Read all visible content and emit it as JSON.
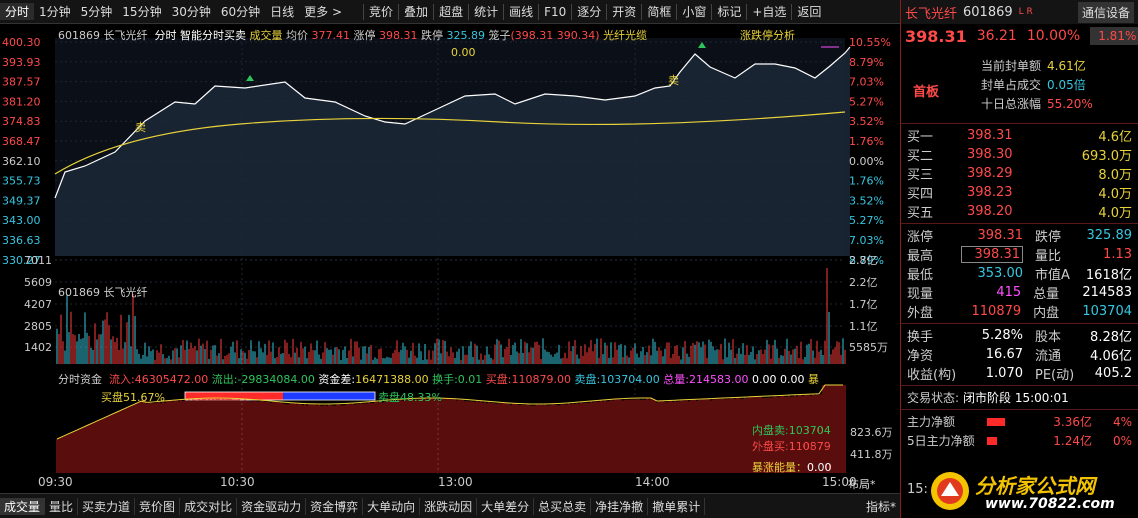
{
  "toolbar": {
    "period_tabs": [
      "分时",
      "1分钟",
      "5分钟",
      "15分钟",
      "30分钟",
      "60分钟",
      "日线",
      "更多 >"
    ],
    "tools": [
      "竞价",
      "叠加",
      "超盘",
      "统计",
      "画线",
      "F10",
      "逐分",
      "开资",
      "简框",
      "小窗",
      "标记",
      "+自选",
      "返回"
    ]
  },
  "chart_header": {
    "code": "601869",
    "name": "长飞光纤",
    "mode": "分时",
    "title": "智能分时买卖",
    "volume_label": "成交量",
    "avg_label": "均价",
    "avg_value": "377.41",
    "limit_up_label": "涨停",
    "limit_up_value": "398.31",
    "limit_down_label": "跌停",
    "limit_down_value": "325.89",
    "basket_label": "笼子",
    "basket_value": "(398.31  390.34)",
    "concept": "光纤光缆",
    "right_label": "涨跌停分析",
    "zero_label": "0.00"
  },
  "price_axis": {
    "left": [
      "400.30",
      "393.93",
      "387.57",
      "381.20",
      "374.83",
      "368.47",
      "362.10",
      "355.73",
      "349.37",
      "343.00",
      "336.63",
      "330.27"
    ],
    "right": [
      "10.55%",
      "8.79%",
      "7.03%",
      "5.27%",
      "3.52%",
      "1.76%",
      "0.00%",
      "1.76%",
      "3.52%",
      "5.27%",
      "7.03%",
      "8.79%"
    ]
  },
  "volume_axis": {
    "header": "601869  长飞光纤",
    "left": [
      "7011",
      "5609",
      "4207",
      "2805",
      "1402"
    ],
    "right": [
      "2.8亿",
      "2.2亿",
      "1.7亿",
      "1.1亿",
      "5585万"
    ]
  },
  "fund_bar": {
    "label": "分时资金",
    "inflow_label": "流入:",
    "inflow": "46305472.00",
    "outflow_label": "流出:",
    "outflow": "-29834084.00",
    "diff_label": "资金差:",
    "diff": "16471388.00",
    "turnover_label": "换手:",
    "turnover": "0.01",
    "buy_label": "买盘:",
    "buy": "110879.00",
    "sell_label": "卖盘:",
    "sell": "103704.00",
    "total_label": "总量:",
    "total": "214583.00",
    "extra1": "0.00",
    "extra2": "0.00",
    "storm": "暴"
  },
  "fund_chart": {
    "buy_ratio_text": "买盘51.67%",
    "sell_ratio_text": "卖盘48.33%",
    "buy_ratio": 51.67,
    "inner_label": "内盘卖:103704",
    "outer_label": "外盘买:110879",
    "storm_label": "暴涨能量：",
    "storm_value": "0.00",
    "right_axis": [
      "823.6万",
      "411.8万"
    ]
  },
  "signals": {
    "buy": "买",
    "sell": "卖"
  },
  "time_axis": [
    "09:30",
    "10:30",
    "13:00",
    "14:00",
    "15:00"
  ],
  "layout_btn": "布局*",
  "bottom_tabs": [
    "成交量",
    "量比",
    "买卖力道",
    "竞价图",
    "成交对比",
    "资金驱动力",
    "资金博弈",
    "大单动向",
    "涨跌动因",
    "大单差分",
    "总买总卖",
    "净挂净撤",
    "撤单累计"
  ],
  "bottom_right": "指标*",
  "panel": {
    "name": "长飞光纤",
    "code": "601869",
    "tag": "L R",
    "settings": "通信设备",
    "price": "398.31",
    "change": "36.21",
    "pct": "10.00%",
    "sector_pct": "1.81%",
    "seal_label": "当前封单额",
    "seal_value": "4.61亿",
    "seal_ratio_label": "封单占成交",
    "seal_ratio": "0.05倍",
    "ten_day_label": "十日总涨幅",
    "ten_day": "55.20%",
    "first_board": "首板",
    "orders": [
      {
        "label": "买一",
        "price": "398.31",
        "vol": "4.6亿"
      },
      {
        "label": "买二",
        "price": "398.30",
        "vol": "693.0万"
      },
      {
        "label": "买三",
        "price": "398.29",
        "vol": "8.0万"
      },
      {
        "label": "买四",
        "price": "398.23",
        "vol": "4.0万"
      },
      {
        "label": "买五",
        "price": "398.20",
        "vol": "4.0万"
      }
    ],
    "stats": [
      {
        "l1": "涨停",
        "v1": "398.31",
        "c1": "red",
        "l2": "跌停",
        "v2": "325.89",
        "c2": "cyan"
      },
      {
        "l1": "最高",
        "v1": "398.31",
        "c1": "red",
        "l2": "量比",
        "v2": "1.13",
        "c2": "red"
      },
      {
        "l1": "最低",
        "v1": "353.00",
        "c1": "cyan",
        "l2": "市值A",
        "v2": "1618亿",
        "c2": "white"
      },
      {
        "l1": "现量",
        "v1": "415",
        "c1": "magenta",
        "l2": "总量",
        "v2": "214583",
        "c2": "white"
      },
      {
        "l1": "外盘",
        "v1": "110879",
        "c1": "red",
        "l2": "内盘",
        "v2": "103704",
        "c2": "cyan"
      }
    ],
    "stats2": [
      {
        "l1": "换手",
        "v1": "5.28%",
        "l2": "股本",
        "v2": "8.28亿"
      },
      {
        "l1": "净资",
        "v1": "16.67",
        "l2": "流通",
        "v2": "4.06亿"
      },
      {
        "l1": "收益(构)",
        "v1": "1.070",
        "l2": "PE(动)",
        "v2": "405.2"
      }
    ],
    "status_label": "交易状态:",
    "status": "闭市阶段 15:00:01",
    "main_flow_label": "主力净额",
    "main_flow": "3.36亿",
    "main_flow_pct": "4%",
    "five_day_label": "5日主力净额",
    "five_day": "1.24亿",
    "five_day_pct": "0%",
    "time_left": "15:",
    "logo_text": "分析家公式网",
    "logo_url": "www.70822.com"
  }
}
